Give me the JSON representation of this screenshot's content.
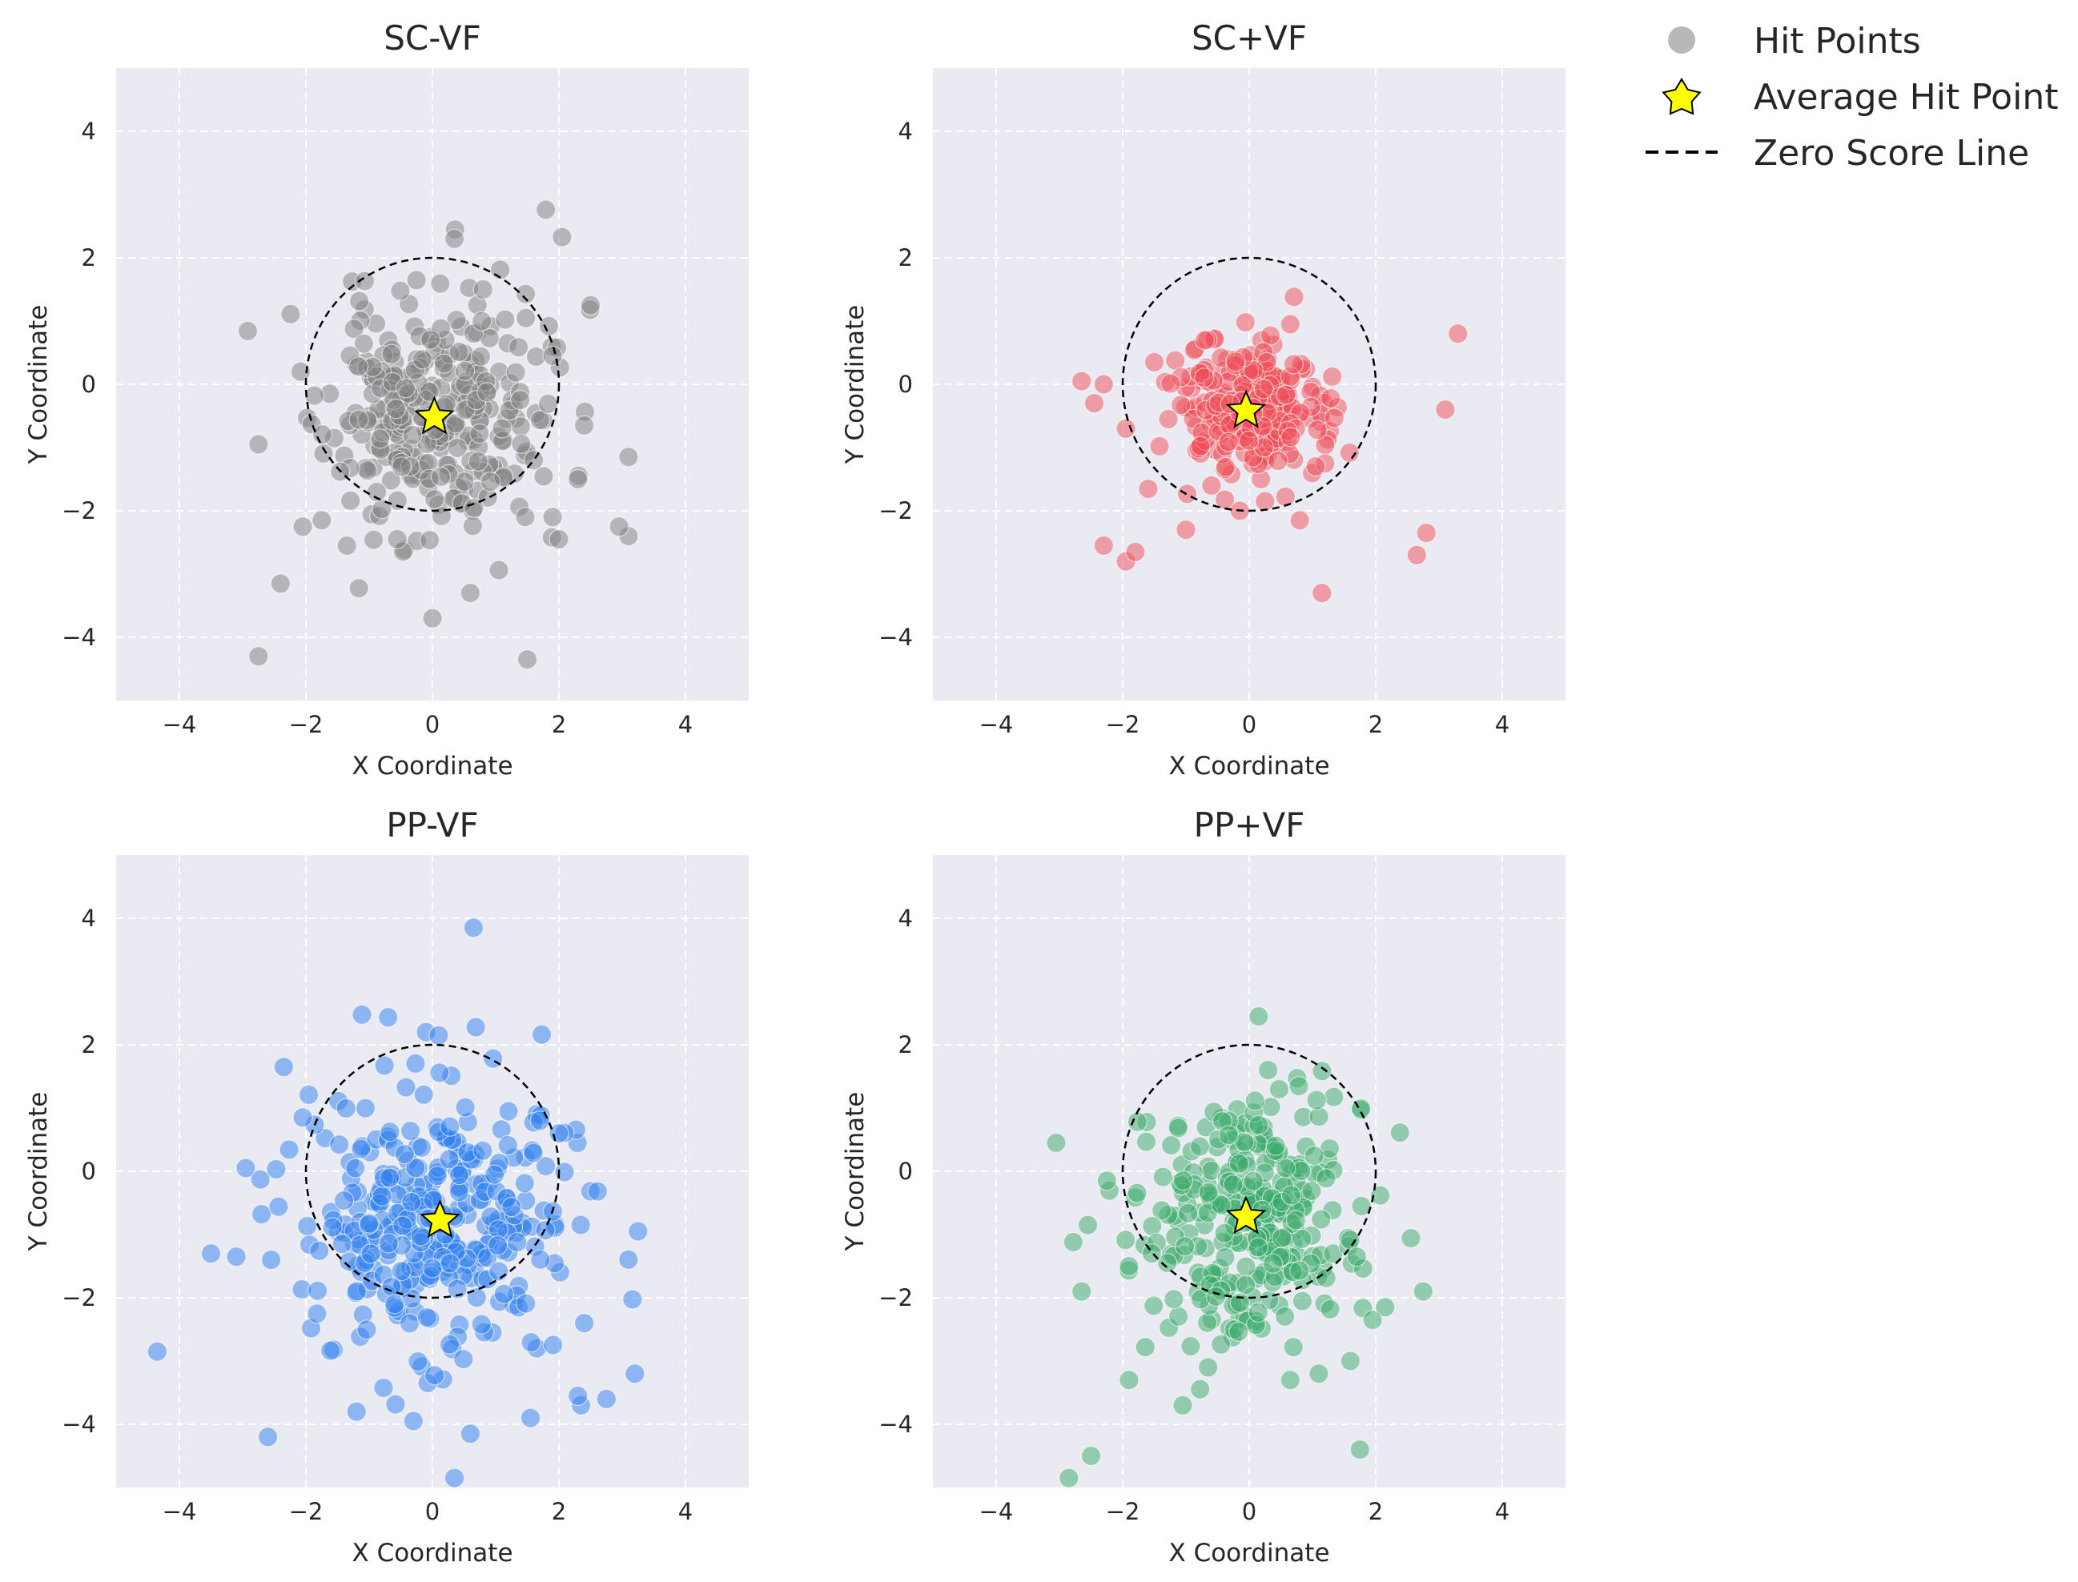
{
  "legend": {
    "items": [
      {
        "label": "Hit Points",
        "kind": "point",
        "color": "#a0a0a0"
      },
      {
        "label": "Average Hit Point",
        "kind": "star",
        "color": "#ffff00"
      },
      {
        "label": "Zero Score Line",
        "kind": "dashed-line",
        "color": "#000000"
      }
    ]
  },
  "chart_data": [
    {
      "type": "scatter",
      "title": "SC-VF",
      "xlabel": "X Coordinate",
      "ylabel": "Y Coordinate",
      "xlim": [
        -5,
        5
      ],
      "ylim": [
        -5,
        5
      ],
      "xticks": [
        -4,
        -2,
        0,
        2,
        4
      ],
      "yticks": [
        -4,
        -2,
        0,
        2,
        4
      ],
      "tick_labels": [
        "−4",
        "−2",
        "0",
        "2",
        "4"
      ],
      "color": "#808080",
      "zero_score_radius": 2,
      "average": [
        0.03,
        -0.52
      ],
      "n_points": 300,
      "x_spread": 0.85,
      "y_spread": 0.95,
      "seed": 11,
      "outliers": [
        [
          0.35,
          2.3
        ],
        [
          0.8,
          1.5
        ],
        [
          2.5,
          1.25
        ],
        [
          -2.75,
          -4.3
        ],
        [
          1.5,
          -4.35
        ],
        [
          -2.4,
          -3.15
        ],
        [
          0.0,
          -3.7
        ],
        [
          3.1,
          -2.4
        ],
        [
          2.95,
          -2.25
        ],
        [
          -2.75,
          -0.95
        ],
        [
          3.1,
          -1.15
        ],
        [
          -2.05,
          -2.25
        ],
        [
          -1.75,
          -2.15
        ],
        [
          -1.35,
          -2.55
        ],
        [
          0.6,
          -3.3
        ],
        [
          1.9,
          -2.1
        ],
        [
          2.0,
          -2.45
        ],
        [
          2.3,
          -1.5
        ],
        [
          2.4,
          -0.65
        ],
        [
          1.9,
          0.45
        ]
      ]
    },
    {
      "type": "scatter",
      "title": "SC+VF",
      "xlabel": "X Coordinate",
      "ylabel": "Y Coordinate",
      "xlim": [
        -5,
        5
      ],
      "ylim": [
        -5,
        5
      ],
      "xticks": [
        -4,
        -2,
        0,
        2,
        4
      ],
      "yticks": [
        -4,
        -2,
        0,
        2,
        4
      ],
      "tick_labels": [
        "−4",
        "−2",
        "0",
        "2",
        "4"
      ],
      "color": "#ef4b55",
      "zero_score_radius": 2,
      "average": [
        -0.05,
        -0.42
      ],
      "n_points": 230,
      "x_spread": 0.6,
      "y_spread": 0.55,
      "seed": 23,
      "outliers": [
        [
          3.3,
          0.8
        ],
        [
          3.1,
          -0.4
        ],
        [
          2.8,
          -2.35
        ],
        [
          2.65,
          -2.7
        ],
        [
          1.15,
          -3.3
        ],
        [
          -2.65,
          0.05
        ],
        [
          -2.45,
          -0.3
        ],
        [
          -2.3,
          -2.55
        ],
        [
          -2.3,
          0.0
        ],
        [
          -1.95,
          -2.8
        ],
        [
          -1.8,
          -2.65
        ],
        [
          -1.0,
          -2.3
        ],
        [
          -1.5,
          0.35
        ],
        [
          -1.95,
          -0.7
        ],
        [
          0.65,
          0.95
        ],
        [
          0.8,
          -2.15
        ],
        [
          1.2,
          -1.25
        ],
        [
          1.05,
          -1.3
        ],
        [
          -0.15,
          -2.0
        ],
        [
          0.25,
          -1.85
        ]
      ]
    },
    {
      "type": "scatter",
      "title": "PP-VF",
      "xlabel": "X Coordinate",
      "ylabel": "Y Coordinate",
      "xlim": [
        -5,
        5
      ],
      "ylim": [
        -5,
        5
      ],
      "xticks": [
        -4,
        -2,
        0,
        2,
        4
      ],
      "yticks": [
        -4,
        -2,
        0,
        2,
        4
      ],
      "tick_labels": [
        "−4",
        "−2",
        "0",
        "2",
        "4"
      ],
      "color": "#2f7ff0",
      "zero_score_radius": 2,
      "average": [
        0.12,
        -0.78
      ],
      "n_points": 330,
      "x_spread": 1.05,
      "y_spread": 1.05,
      "seed": 37,
      "outliers": [
        [
          0.65,
          3.85
        ],
        [
          -0.1,
          2.2
        ],
        [
          0.1,
          2.15
        ],
        [
          -4.35,
          -2.85
        ],
        [
          -2.6,
          -4.2
        ],
        [
          0.35,
          -4.85
        ],
        [
          -1.2,
          -3.8
        ],
        [
          0.6,
          -4.15
        ],
        [
          3.25,
          -0.95
        ],
        [
          3.2,
          -3.2
        ],
        [
          2.75,
          -3.6
        ],
        [
          2.35,
          -3.7
        ],
        [
          2.3,
          -3.55
        ],
        [
          -2.35,
          1.65
        ],
        [
          -2.05,
          0.85
        ],
        [
          -2.95,
          0.05
        ],
        [
          -3.5,
          -1.3
        ],
        [
          -3.1,
          -1.35
        ],
        [
          -2.55,
          -1.4
        ],
        [
          1.7,
          0.8
        ],
        [
          2.0,
          0.6
        ],
        [
          1.55,
          -3.9
        ],
        [
          2.4,
          -2.4
        ],
        [
          -0.3,
          -3.95
        ]
      ]
    },
    {
      "type": "scatter",
      "title": "PP+VF",
      "xlabel": "X Coordinate",
      "ylabel": "Y Coordinate",
      "xlim": [
        -5,
        5
      ],
      "ylim": [
        -5,
        5
      ],
      "xticks": [
        -4,
        -2,
        0,
        2,
        4
      ],
      "yticks": [
        -4,
        -2,
        0,
        2,
        4
      ],
      "tick_labels": [
        "−4",
        "−2",
        "0",
        "2",
        "4"
      ],
      "color": "#3aaa6a",
      "zero_score_radius": 2,
      "average": [
        -0.05,
        -0.72
      ],
      "n_points": 290,
      "x_spread": 0.8,
      "y_spread": 0.95,
      "seed": 53,
      "outliers": [
        [
          0.15,
          2.45
        ],
        [
          0.3,
          1.6
        ],
        [
          -2.85,
          -4.85
        ],
        [
          -2.5,
          -4.5
        ],
        [
          1.75,
          -4.4
        ],
        [
          -1.05,
          -3.7
        ],
        [
          -3.05,
          0.45
        ],
        [
          -2.25,
          -0.15
        ],
        [
          -2.55,
          -0.85
        ],
        [
          2.75,
          -1.9
        ],
        [
          2.15,
          -2.15
        ],
        [
          -2.65,
          -1.9
        ],
        [
          -1.9,
          -3.3
        ],
        [
          1.1,
          -3.2
        ],
        [
          -0.65,
          -3.1
        ],
        [
          0.65,
          -3.3
        ],
        [
          1.6,
          -3.0
        ],
        [
          1.95,
          -2.35
        ],
        [
          -1.9,
          -1.5
        ],
        [
          1.7,
          -1.35
        ]
      ]
    }
  ]
}
